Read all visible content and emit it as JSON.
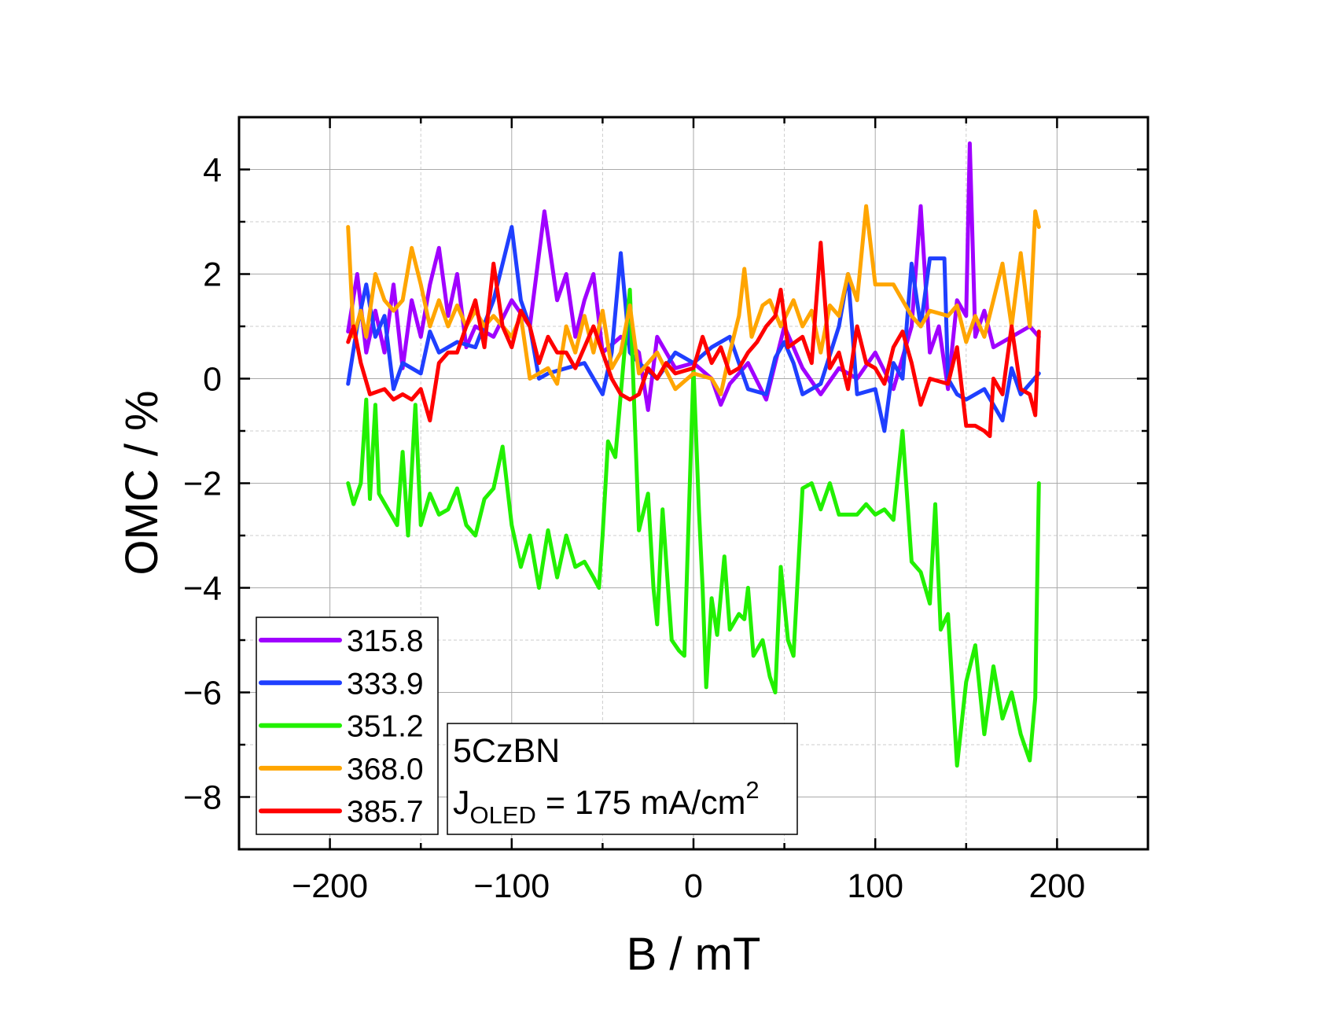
{
  "chart_data": {
    "type": "line",
    "title": "",
    "xlabel": "B / mT",
    "ylabel": "OMC / %",
    "xlim": [
      -250,
      250
    ],
    "ylim": [
      -9,
      5
    ],
    "xticks": [
      -200,
      -100,
      0,
      100,
      200
    ],
    "yticks": [
      -8,
      -6,
      -4,
      -2,
      0,
      2,
      4
    ],
    "grid": true,
    "legend_position": "bottom-left",
    "annotation": {
      "line1": "5CzBN",
      "line2_main": "J",
      "line2_sub": "OLED",
      "line2_rest": " = 175 mA/cm",
      "line2_sup": "2"
    },
    "series": [
      {
        "name": "315.8",
        "color": "#a000ff",
        "x": [
          -190,
          -185,
          -180,
          -175,
          -170,
          -165,
          -160,
          -155,
          -150,
          -145,
          -140,
          -135,
          -130,
          -125,
          -120,
          -110,
          -100,
          -90,
          -82,
          -75,
          -70,
          -65,
          -60,
          -55,
          -50,
          -40,
          -30,
          -25,
          -20,
          -10,
          0,
          10,
          15,
          20,
          30,
          40,
          50,
          60,
          70,
          80,
          90,
          100,
          110,
          120,
          125,
          130,
          135,
          140,
          145,
          150,
          152,
          155,
          160,
          165,
          175,
          185,
          190
        ],
        "y": [
          0.9,
          2.0,
          0.5,
          1.3,
          0.5,
          1.8,
          0.2,
          1.5,
          0.8,
          1.8,
          2.5,
          1.2,
          2.0,
          0.6,
          1.0,
          0.8,
          1.5,
          1.0,
          3.2,
          1.5,
          2.0,
          0.8,
          1.5,
          2.0,
          0.5,
          0.8,
          0.5,
          -0.6,
          0.8,
          0.2,
          0.3,
          0.0,
          -0.5,
          -0.1,
          0.3,
          -0.4,
          1.0,
          0.2,
          -0.3,
          0.2,
          0.0,
          0.5,
          -0.2,
          1.0,
          3.3,
          0.5,
          1.0,
          -0.2,
          1.5,
          1.2,
          4.5,
          0.8,
          1.3,
          0.6,
          0.8,
          1.0,
          0.8
        ]
      },
      {
        "name": "333.9",
        "color": "#1f3fff",
        "x": [
          -190,
          -185,
          -180,
          -175,
          -170,
          -165,
          -160,
          -155,
          -150,
          -145,
          -140,
          -130,
          -120,
          -110,
          -100,
          -95,
          -90,
          -85,
          -80,
          -70,
          -60,
          -50,
          -45,
          -40,
          -35,
          -30,
          -20,
          -10,
          0,
          10,
          20,
          30,
          40,
          45,
          50,
          55,
          60,
          70,
          80,
          85,
          90,
          100,
          105,
          110,
          115,
          120,
          125,
          130,
          138,
          140,
          145,
          150,
          160,
          170,
          175,
          180,
          190
        ],
        "y": [
          -0.1,
          1.0,
          1.8,
          0.8,
          1.2,
          -0.2,
          0.3,
          0.2,
          0.1,
          0.9,
          0.5,
          0.7,
          0.6,
          1.5,
          2.9,
          1.5,
          1.0,
          0.0,
          0.1,
          0.2,
          0.3,
          -0.3,
          0.5,
          2.4,
          0.5,
          0.3,
          0.0,
          0.5,
          0.3,
          0.6,
          0.8,
          -0.2,
          -0.3,
          0.4,
          0.7,
          0.3,
          -0.3,
          -0.1,
          1.0,
          2.0,
          -0.3,
          -0.2,
          -1.0,
          0.3,
          0.0,
          2.2,
          1.0,
          2.3,
          2.3,
          0.0,
          -0.3,
          -0.4,
          -0.2,
          -0.8,
          0.2,
          -0.3,
          0.1
        ]
      },
      {
        "name": "351.2",
        "color": "#22f000",
        "x": [
          -190,
          -187,
          -183,
          -180,
          -178,
          -175,
          -173,
          -168,
          -163,
          -160,
          -157,
          -153,
          -150,
          -145,
          -140,
          -135,
          -130,
          -125,
          -120,
          -115,
          -110,
          -105,
          -100,
          -95,
          -90,
          -85,
          -80,
          -75,
          -70,
          -65,
          -60,
          -55,
          -52,
          -50,
          -47,
          -43,
          -38,
          -35,
          -30,
          -25,
          -22,
          -20,
          -17,
          -12,
          -8,
          -5,
          0,
          3,
          5,
          7,
          10,
          13,
          17,
          20,
          25,
          28,
          30,
          33,
          38,
          42,
          45,
          48,
          52,
          55,
          60,
          65,
          70,
          75,
          80,
          90,
          95,
          100,
          105,
          110,
          115,
          120,
          125,
          130,
          133,
          136,
          140,
          145,
          150,
          155,
          160,
          165,
          170,
          175,
          180,
          185,
          188,
          190
        ],
        "y": [
          -2.0,
          -2.4,
          -2.0,
          -0.4,
          -2.3,
          -0.5,
          -2.2,
          -2.5,
          -2.8,
          -1.4,
          -3.0,
          -0.5,
          -2.8,
          -2.2,
          -2.6,
          -2.5,
          -2.1,
          -2.8,
          -3.0,
          -2.3,
          -2.1,
          -1.3,
          -2.8,
          -3.6,
          -3.0,
          -4.0,
          -2.9,
          -3.8,
          -3.0,
          -3.6,
          -3.5,
          -3.8,
          -4.0,
          -3.0,
          -1.2,
          -1.5,
          0.5,
          1.7,
          -2.9,
          -2.2,
          -4.0,
          -4.7,
          -2.5,
          -5.0,
          -5.2,
          -5.3,
          0.2,
          -2.5,
          -4.0,
          -5.9,
          -4.2,
          -4.9,
          -3.4,
          -4.8,
          -4.5,
          -4.6,
          -4.0,
          -5.3,
          -5.0,
          -5.7,
          -6.0,
          -3.6,
          -5.0,
          -5.3,
          -2.1,
          -2.0,
          -2.5,
          -2.0,
          -2.6,
          -2.6,
          -2.4,
          -2.6,
          -2.5,
          -2.7,
          -1.0,
          -3.5,
          -3.7,
          -4.3,
          -2.4,
          -4.8,
          -4.5,
          -7.4,
          -5.8,
          -5.1,
          -6.8,
          -5.5,
          -6.5,
          -6.0,
          -6.8,
          -7.3,
          -6.1,
          -2.0
        ]
      },
      {
        "name": "368.0",
        "color": "#ffa500",
        "x": [
          -190,
          -187,
          -183,
          -180,
          -175,
          -170,
          -165,
          -160,
          -155,
          -150,
          -145,
          -140,
          -135,
          -130,
          -125,
          -120,
          -115,
          -110,
          -100,
          -95,
          -90,
          -85,
          -80,
          -75,
          -70,
          -65,
          -60,
          -55,
          -50,
          -45,
          -40,
          -35,
          -30,
          -20,
          -10,
          0,
          10,
          15,
          20,
          25,
          28,
          32,
          38,
          42,
          48,
          55,
          60,
          65,
          70,
          75,
          80,
          85,
          90,
          95,
          100,
          110,
          120,
          125,
          130,
          140,
          145,
          150,
          155,
          160,
          170,
          175,
          180,
          185,
          188,
          190
        ],
        "y": [
          2.9,
          0.8,
          1.3,
          0.8,
          2.0,
          1.5,
          1.3,
          1.5,
          2.5,
          1.8,
          1.0,
          1.5,
          1.0,
          1.4,
          1.0,
          1.3,
          1.0,
          1.2,
          0.8,
          1.2,
          0.0,
          0.1,
          0.2,
          -0.1,
          1.0,
          0.5,
          1.2,
          0.5,
          1.3,
          0.2,
          0.5,
          1.4,
          0.1,
          0.5,
          -0.2,
          0.1,
          0.0,
          -0.3,
          0.5,
          1.2,
          2.1,
          0.8,
          1.4,
          1.5,
          1.0,
          1.5,
          1.0,
          1.3,
          0.5,
          1.4,
          1.2,
          2.0,
          1.5,
          3.3,
          1.8,
          1.8,
          1.2,
          1.0,
          1.3,
          1.2,
          1.4,
          0.7,
          1.2,
          0.8,
          2.2,
          1.0,
          2.4,
          1.0,
          3.2,
          2.9
        ]
      },
      {
        "name": "385.7",
        "color": "#ff0000",
        "x": [
          -190,
          -187,
          -183,
          -178,
          -170,
          -165,
          -160,
          -155,
          -150,
          -145,
          -140,
          -135,
          -130,
          -125,
          -120,
          -115,
          -110,
          -105,
          -100,
          -95,
          -90,
          -85,
          -80,
          -75,
          -70,
          -65,
          -60,
          -55,
          -50,
          -45,
          -40,
          -35,
          -30,
          -25,
          -20,
          -15,
          -10,
          0,
          5,
          10,
          15,
          20,
          25,
          30,
          35,
          40,
          45,
          48,
          52,
          60,
          65,
          70,
          75,
          80,
          85,
          90,
          95,
          100,
          105,
          110,
          115,
          120,
          125,
          130,
          140,
          145,
          150,
          155,
          160,
          163,
          165,
          170,
          175,
          180,
          185,
          188,
          190
        ],
        "y": [
          0.7,
          1.0,
          0.3,
          -0.3,
          -0.2,
          -0.4,
          -0.3,
          -0.4,
          -0.2,
          -0.8,
          0.3,
          0.5,
          0.5,
          1.0,
          1.5,
          0.6,
          2.2,
          1.0,
          0.6,
          1.3,
          1.0,
          0.3,
          0.8,
          0.5,
          0.5,
          0.2,
          0.6,
          1.0,
          0.5,
          0.0,
          -0.3,
          -0.4,
          -0.3,
          0.2,
          0.0,
          0.3,
          0.1,
          0.2,
          0.8,
          0.3,
          0.6,
          0.1,
          0.2,
          0.5,
          0.7,
          1.0,
          1.2,
          1.7,
          0.6,
          0.8,
          0.3,
          2.6,
          0.2,
          0.5,
          -0.2,
          1.0,
          0.3,
          0.2,
          -0.1,
          0.6,
          0.9,
          0.3,
          -0.5,
          0.0,
          -0.1,
          0.6,
          -0.9,
          -0.9,
          -1.0,
          -1.1,
          0.0,
          -0.3,
          1.0,
          -0.2,
          -0.3,
          -0.7,
          0.9
        ]
      }
    ]
  }
}
